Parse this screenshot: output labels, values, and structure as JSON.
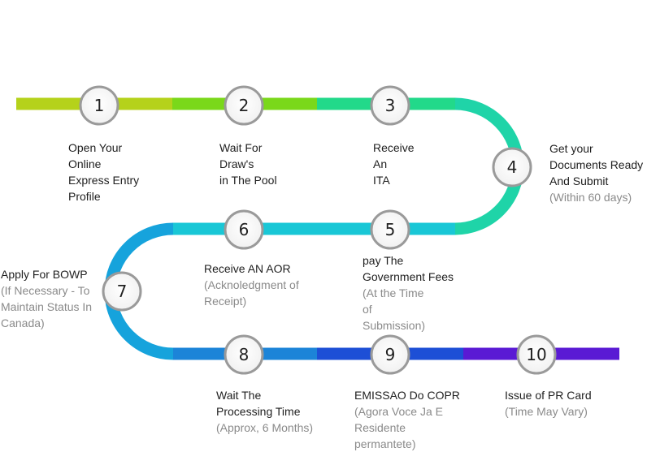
{
  "steps": [
    {
      "number": "1",
      "title": "Open Your\nOnline\nExpress Entry\nProfile",
      "sub": ""
    },
    {
      "number": "2",
      "title": "Wait For\nDraw's\nin The Pool",
      "sub": ""
    },
    {
      "number": "3",
      "title": "Receive\nAn\nITA",
      "sub": ""
    },
    {
      "number": "4",
      "title": "Get your\nDocuments Ready\nAnd Submit",
      "sub": "(Within 60 days)"
    },
    {
      "number": "5",
      "title": "pay The\nGovernment Fees",
      "sub": "(At the Time\nof\nSubmission)"
    },
    {
      "number": "6",
      "title": "Receive AN AOR",
      "sub": "(Acknoledgment of\nReceipt)"
    },
    {
      "number": "7",
      "title": "Apply For BOWP",
      "sub": "(If Necessary - To\nMaintain Status In\nCanada)"
    },
    {
      "number": "8",
      "title": "Wait The\nProcessing Time",
      "sub": "(Approx, 6 Months)"
    },
    {
      "number": "9",
      "title": "EMISSAO Do COPR",
      "sub": "(Agora Voce Ja E\nResidente\npermantete)"
    },
    {
      "number": "10",
      "title": "Issue of PR Card",
      "sub": "(Time May Vary)"
    }
  ],
  "colors": {
    "seg_1": "#b5d21b",
    "seg_2": "#7ad81a",
    "seg_3": "#22d98a",
    "seg_curve_right": "#1fd4a8",
    "seg_row2": "#19c7d6",
    "seg_curve_left": "#16a3dc",
    "seg_8": "#1c84d8",
    "seg_9": "#1d4fd6",
    "seg_10": "#5a1ad4"
  }
}
